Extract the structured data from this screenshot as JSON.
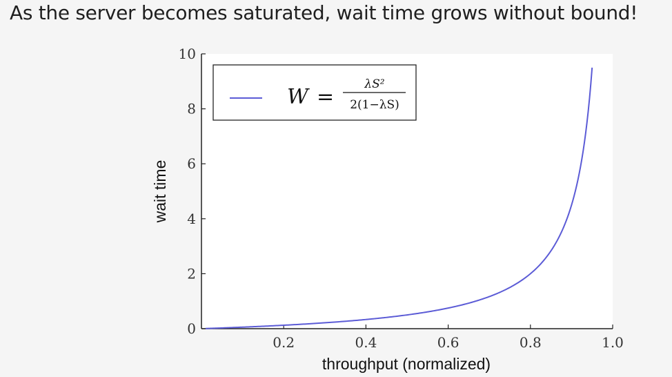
{
  "slide": {
    "headline": "As the server becomes saturated, wait time grows without bound!"
  },
  "chart_data": {
    "type": "line",
    "title": "",
    "xlabel": "throughput (normalized)",
    "ylabel": "wait time",
    "xlim": [
      0.0,
      1.0
    ],
    "ylim": [
      0,
      10
    ],
    "xticks": [
      0.2,
      0.4,
      0.6,
      0.8,
      1.0
    ],
    "xtick_labels": [
      "0.2",
      "0.4",
      "0.6",
      "0.8",
      "1.0"
    ],
    "yticks": [
      0,
      2,
      4,
      6,
      8,
      10
    ],
    "ytick_labels": [
      "0",
      "2",
      "4",
      "6",
      "8",
      "10"
    ],
    "grid": false,
    "legend_position": "top-left",
    "legend": {
      "lhs": "W",
      "equals": "=",
      "numerator": "λS²",
      "denominator": "2(1−λS)"
    },
    "series": [
      {
        "color": "#5b5bd6",
        "x": [
          0.01,
          0.1,
          0.2,
          0.3,
          0.4,
          0.5,
          0.6,
          0.7,
          0.75,
          0.8,
          0.85,
          0.9,
          0.92,
          0.94,
          0.95
        ],
        "y": [
          0.005,
          0.056,
          0.125,
          0.214,
          0.333,
          0.5,
          0.75,
          1.167,
          1.5,
          2.0,
          2.833,
          4.5,
          5.75,
          7.833,
          9.5
        ]
      }
    ]
  }
}
